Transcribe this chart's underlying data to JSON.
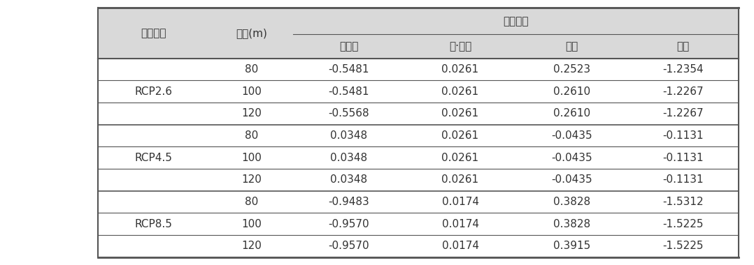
{
  "header_row1": [
    "시나리오",
    "고도(m)",
    "발전단지",
    "",
    "",
    ""
  ],
  "header_row2": [
    "",
    "",
    "대관령",
    "서·남해",
    "영양",
    "한경"
  ],
  "scenarios": [
    "RCP2.6",
    "RCP4.5",
    "RCP8.5"
  ],
  "altitudes": [
    80,
    100,
    120
  ],
  "data": {
    "RCP2.6": {
      "80": [
        "-0.5481",
        "0.0261",
        "0.2523",
        "-1.2354"
      ],
      "100": [
        "-0.5481",
        "0.0261",
        "0.2610",
        "-1.2267"
      ],
      "120": [
        "-0.5568",
        "0.0261",
        "0.2610",
        "-1.2267"
      ]
    },
    "RCP4.5": {
      "80": [
        "0.0348",
        "0.0261",
        "-0.0435",
        "-0.1131"
      ],
      "100": [
        "0.0348",
        "0.0261",
        "-0.0435",
        "-0.1131"
      ],
      "120": [
        "0.0348",
        "0.0261",
        "-0.0435",
        "-0.1131"
      ]
    },
    "RCP8.5": {
      "80": [
        "-0.9483",
        "0.0174",
        "0.3828",
        "-1.5312"
      ],
      "100": [
        "-0.9570",
        "0.0174",
        "0.3828",
        "-1.5225"
      ],
      "120": [
        "-0.9570",
        "0.0174",
        "0.3915",
        "-1.5225"
      ]
    }
  },
  "col_labels": [
    "대관령",
    "서·남해",
    "영양",
    "한경"
  ],
  "header_bg": "#d9d9d9",
  "table_bg": "#ffffff",
  "text_color": "#333333",
  "border_color": "#555555",
  "font_size": 11,
  "header_font_size": 11
}
